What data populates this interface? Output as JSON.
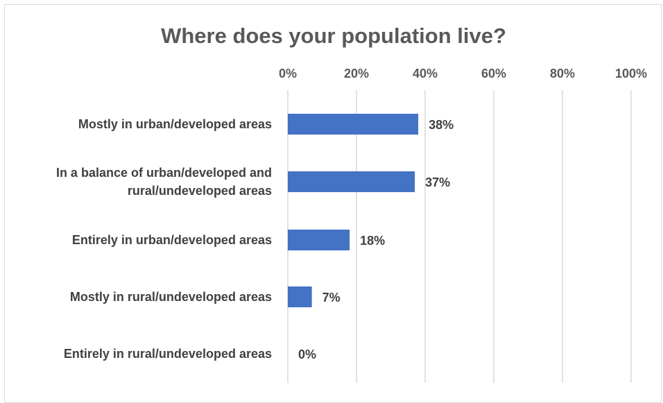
{
  "chart_data": {
    "type": "bar",
    "orientation": "horizontal",
    "title": "Where does your population live?",
    "categories": [
      "Mostly in urban/developed areas",
      "In a balance of urban/developed and rural/undeveloped areas",
      "Entirely in urban/developed areas",
      "Mostly in rural/undeveloped areas",
      "Entirely in rural/undeveloped areas"
    ],
    "category_lines": [
      [
        "Mostly in urban/developed areas"
      ],
      [
        "In a balance of urban/developed and",
        "rural/undeveloped areas"
      ],
      [
        "Entirely in urban/developed areas"
      ],
      [
        "Mostly in rural/undeveloped areas"
      ],
      [
        "Entirely in rural/undeveloped areas"
      ]
    ],
    "values": [
      38,
      37,
      18,
      7,
      0
    ],
    "data_labels": [
      "38%",
      "37%",
      "18%",
      "7%",
      "0%"
    ],
    "xlim": [
      0,
      100
    ],
    "x_ticks": [
      0,
      20,
      40,
      60,
      80,
      100
    ],
    "x_tick_labels": [
      "0%",
      "20%",
      "40%",
      "60%",
      "80%",
      "100%"
    ],
    "x_axis_position": "top",
    "grid": "vertical",
    "legend": "none",
    "bar_color": "#4472C4",
    "grid_color": "#d9d9d9",
    "text_color": "#404040"
  }
}
